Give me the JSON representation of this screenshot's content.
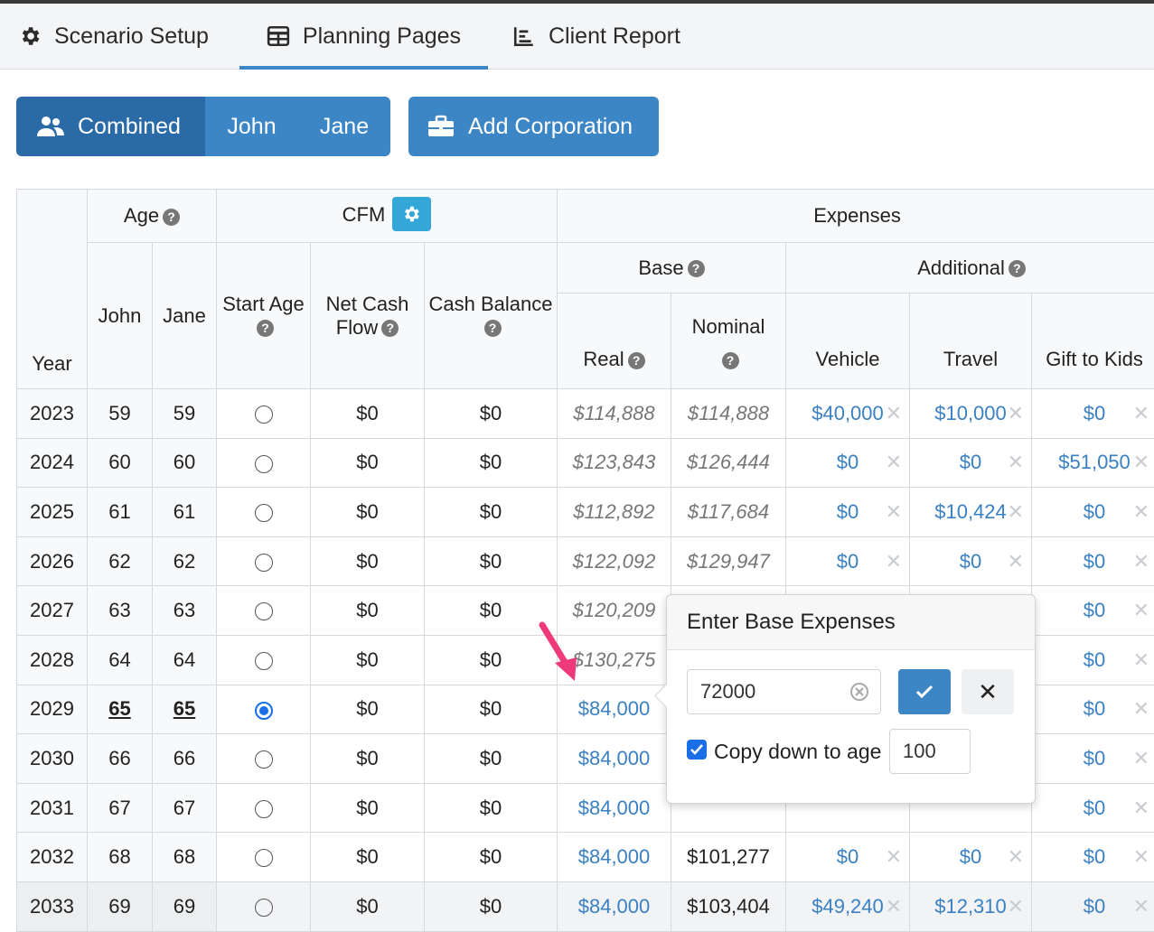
{
  "nav": {
    "tabs": [
      {
        "label": "Scenario Setup",
        "icon": "gear-icon"
      },
      {
        "label": "Planning Pages",
        "icon": "table-icon",
        "active": true
      },
      {
        "label": "Client Report",
        "icon": "chart-icon"
      }
    ]
  },
  "toolbar": {
    "combined_label": "Combined",
    "john_label": "John",
    "jane_label": "Jane",
    "add_corp_label": "Add Corporation"
  },
  "table": {
    "headers": {
      "year": "Year",
      "age": "Age",
      "john": "John",
      "jane": "Jane",
      "cfm": "CFM",
      "start_age": "Start Age",
      "net_cash_flow": "Net Cash Flow",
      "cash_balance": "Cash Balance",
      "expenses": "Expenses",
      "base": "Base",
      "additional": "Additional",
      "real": "Real",
      "nominal": "Nominal",
      "vehicle": "Vehicle",
      "travel": "Travel",
      "gift_to_kids": "Gift to Kids"
    },
    "rows": [
      {
        "year": "2023",
        "john": "59",
        "jane": "59",
        "start": false,
        "ncf": "$0",
        "cash": "$0",
        "real": "$114,888",
        "nominal": "$114,888",
        "vehicle": "$40,000",
        "travel": "$10,000",
        "gift": "$0"
      },
      {
        "year": "2024",
        "john": "60",
        "jane": "60",
        "start": false,
        "ncf": "$0",
        "cash": "$0",
        "real": "$123,843",
        "nominal": "$126,444",
        "vehicle": "$0",
        "travel": "$0",
        "gift": "$51,050"
      },
      {
        "year": "2025",
        "john": "61",
        "jane": "61",
        "start": false,
        "ncf": "$0",
        "cash": "$0",
        "real": "$112,892",
        "nominal": "$117,684",
        "vehicle": "$0",
        "travel": "$10,424",
        "gift": "$0"
      },
      {
        "year": "2026",
        "john": "62",
        "jane": "62",
        "start": false,
        "ncf": "$0",
        "cash": "$0",
        "real": "$122,092",
        "nominal": "$129,947",
        "vehicle": "$0",
        "travel": "$0",
        "gift": "$0"
      },
      {
        "year": "2027",
        "john": "63",
        "jane": "63",
        "start": false,
        "ncf": "$0",
        "cash": "$0",
        "real": "$120,209",
        "nominal": "",
        "vehicle": "",
        "travel": "",
        "gift": "$0"
      },
      {
        "year": "2028",
        "john": "64",
        "jane": "64",
        "start": false,
        "ncf": "$0",
        "cash": "$0",
        "real": "$130,275",
        "nominal": "",
        "vehicle": "",
        "travel": "",
        "gift": "$0"
      },
      {
        "year": "2029",
        "john": "65",
        "jane": "65",
        "start": true,
        "ncf": "$0",
        "cash": "$0",
        "real": "$84,000",
        "nominal": "",
        "vehicle": "",
        "travel": "",
        "gift": "$0"
      },
      {
        "year": "2030",
        "john": "66",
        "jane": "66",
        "start": false,
        "ncf": "$0",
        "cash": "$0",
        "real": "$84,000",
        "nominal": "",
        "vehicle": "",
        "travel": "",
        "gift": "$0"
      },
      {
        "year": "2031",
        "john": "67",
        "jane": "67",
        "start": false,
        "ncf": "$0",
        "cash": "$0",
        "real": "$84,000",
        "nominal": "",
        "vehicle": "",
        "travel": "",
        "gift": "$0"
      },
      {
        "year": "2032",
        "john": "68",
        "jane": "68",
        "start": false,
        "ncf": "$0",
        "cash": "$0",
        "real": "$84,000",
        "nominal": "$101,277",
        "vehicle": "$0",
        "travel": "$0",
        "gift": "$0"
      },
      {
        "year": "2033",
        "john": "69",
        "jane": "69",
        "start": false,
        "ncf": "$0",
        "cash": "$0",
        "real": "$84,000",
        "nominal": "$103,404",
        "vehicle": "$49,240",
        "travel": "$12,310",
        "gift": "$0"
      }
    ]
  },
  "popover": {
    "title": "Enter Base Expenses",
    "value": "72000",
    "copy_label": "Copy down to age",
    "copy_checked": true,
    "copy_age": "100"
  },
  "colors": {
    "accent": "#3d86c6",
    "accent_dark": "#2a6aa6",
    "link": "#3a80c2",
    "pointer": "#ee3a7b"
  }
}
